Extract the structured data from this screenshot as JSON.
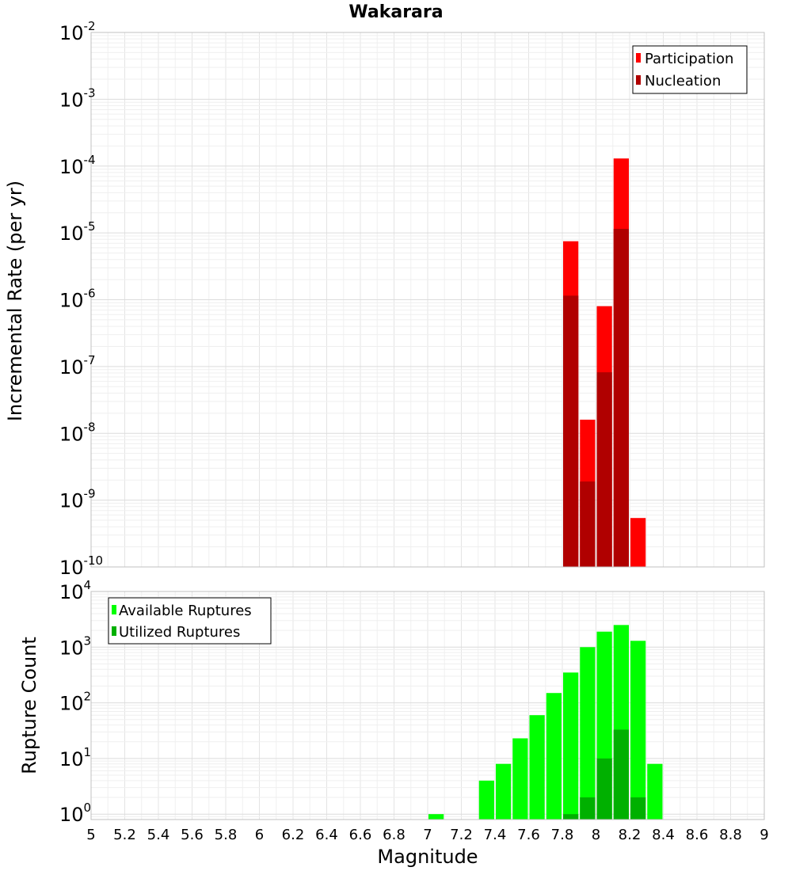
{
  "chart_data": [
    {
      "type": "bar",
      "title": "Wakarara",
      "xlabel": "",
      "ylabel": "Incremental Rate (per yr)",
      "yscale": "log",
      "ylim": [
        1e-10,
        0.01
      ],
      "xlim": [
        5,
        9
      ],
      "y_ticks": [
        {
          "base": "10",
          "exp": "-10",
          "value": 1e-10
        },
        {
          "base": "10",
          "exp": "-9",
          "value": 1e-09
        },
        {
          "base": "10",
          "exp": "-8",
          "value": 1e-08
        },
        {
          "base": "10",
          "exp": "-7",
          "value": 1e-07
        },
        {
          "base": "10",
          "exp": "-6",
          "value": 1e-06
        },
        {
          "base": "10",
          "exp": "-5",
          "value": 1e-05
        },
        {
          "base": "10",
          "exp": "-4",
          "value": 0.0001
        },
        {
          "base": "10",
          "exp": "-3",
          "value": 0.001
        },
        {
          "base": "10",
          "exp": "-2",
          "value": 0.01
        }
      ],
      "bin_width": 0.1,
      "legend_position": "top-right",
      "series": [
        {
          "name": "Participation",
          "color": "#ff0000",
          "x": [
            7.85,
            7.95,
            8.05,
            8.15,
            8.25
          ],
          "values": [
            7.5e-06,
            1.6e-08,
            8e-07,
            0.00013,
            5.4e-10
          ]
        },
        {
          "name": "Nucleation",
          "color": "#b00000",
          "x": [
            7.85,
            7.95,
            8.05,
            8.15
          ],
          "values": [
            1.15e-06,
            1.9e-09,
            8.2e-08,
            1.15e-05
          ]
        }
      ]
    },
    {
      "type": "bar",
      "title": "",
      "xlabel": "Magnitude",
      "ylabel": "Rupture Count",
      "yscale": "log",
      "ylim": [
        0.8,
        10000
      ],
      "xlim": [
        5,
        9
      ],
      "y_ticks": [
        {
          "base": "10",
          "exp": "0",
          "value": 1
        },
        {
          "base": "10",
          "exp": "1",
          "value": 10
        },
        {
          "base": "10",
          "exp": "2",
          "value": 100
        },
        {
          "base": "10",
          "exp": "3",
          "value": 1000
        },
        {
          "base": "10",
          "exp": "4",
          "value": 10000
        }
      ],
      "x_ticks": [
        "5",
        "5.2",
        "5.4",
        "5.6",
        "5.8",
        "6",
        "6.2",
        "6.4",
        "6.6",
        "6.8",
        "7",
        "7.2",
        "7.4",
        "7.6",
        "7.8",
        "8",
        "8.2",
        "8.4",
        "8.6",
        "8.8",
        "9"
      ],
      "bin_width": 0.1,
      "legend_position": "top-left",
      "series": [
        {
          "name": "Available Ruptures",
          "color": "#00ff00",
          "x": [
            7.05,
            7.35,
            7.45,
            7.55,
            7.65,
            7.75,
            7.85,
            7.95,
            8.05,
            8.15,
            8.25,
            8.35
          ],
          "values": [
            1,
            4,
            8,
            23,
            60,
            150,
            350,
            1000,
            1900,
            2500,
            1300,
            8
          ]
        },
        {
          "name": "Utilized Ruptures",
          "color": "#00b000",
          "x": [
            7.85,
            7.95,
            8.05,
            8.15,
            8.25
          ],
          "values": [
            1,
            2,
            10,
            33,
            2
          ]
        }
      ]
    }
  ]
}
